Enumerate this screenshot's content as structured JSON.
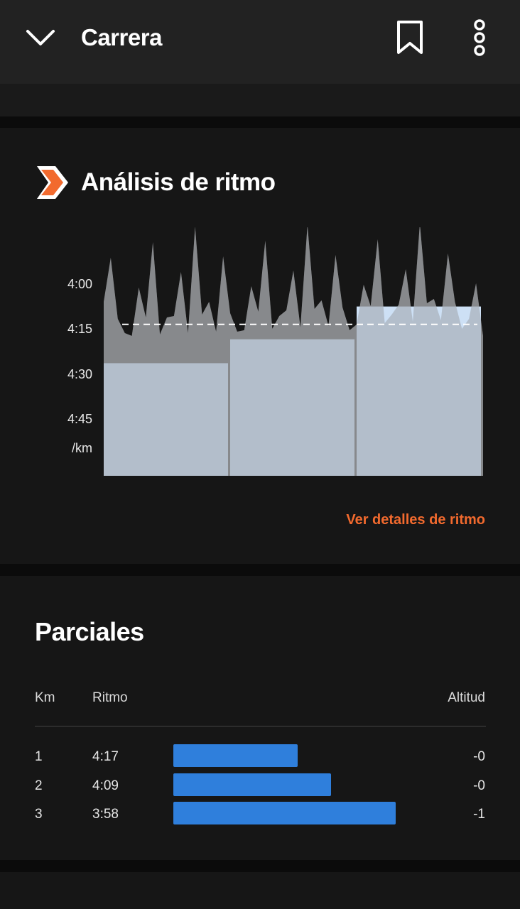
{
  "header": {
    "title": "Carrera",
    "icons": [
      "chevron-down-icon",
      "bookmark-icon",
      "more-vertical-icon"
    ]
  },
  "pace_card": {
    "title": "Análisis de ritmo",
    "icon": "pace-chevron-icon",
    "link_label": "Ver detalles de ritmo",
    "accent_color": "#f26a2e"
  },
  "chart_data": {
    "type": "bar",
    "y_labels": [
      "4:00",
      "4:15",
      "4:30",
      "4:45",
      "/km"
    ],
    "categories": [
      "1",
      "2",
      "3"
    ],
    "values": [
      257,
      249,
      238
    ],
    "value_unit": "seconds per km",
    "average_pace": 244,
    "ylim": [
      295,
      232
    ],
    "inverted_y": true,
    "bar_color": "#cde0f5",
    "trace_color": "#6a6a6a"
  },
  "splits": {
    "title": "Parciales",
    "headers": {
      "km": "Km",
      "pace": "Ritmo",
      "altitude": "Altitud"
    },
    "rows": [
      {
        "km": "1",
        "pace": "4:17",
        "altitude": "-0",
        "pace_seconds": 257
      },
      {
        "km": "2",
        "pace": "4:09",
        "altitude": "-0",
        "pace_seconds": 249
      },
      {
        "km": "3",
        "pace": "3:58",
        "altitude": "-1",
        "pace_seconds": 238
      }
    ],
    "bar_color": "#2f7fdc"
  }
}
